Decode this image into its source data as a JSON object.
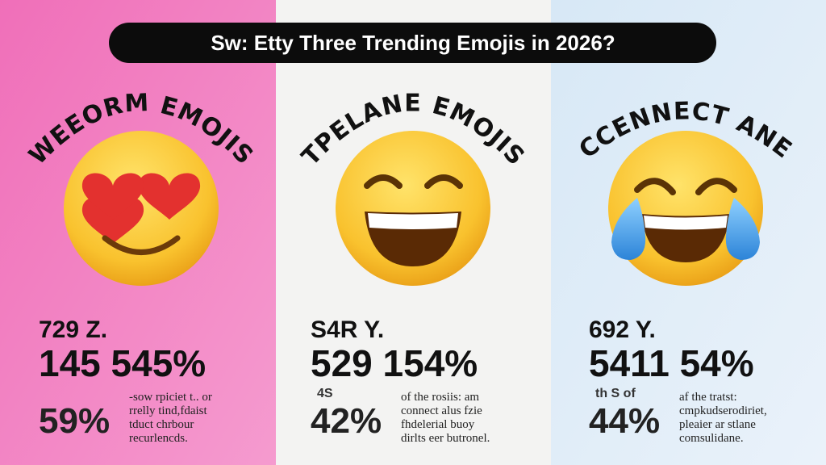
{
  "header": {
    "title": "Sw: Etty Three Trending Emojis in 2026?"
  },
  "panels": [
    {
      "heading": "WEEORM EMOJIS",
      "stat_small": "729 Z.",
      "stat_large": "145 545%",
      "percent": "59%",
      "text": [
        "-sow rpiciet t.. or",
        "rrelly tind,fdaist",
        "tduct chrbour",
        "recurlencds."
      ]
    },
    {
      "heading": "TPELANE EMOJIS",
      "stat_small": "S4R Y.",
      "stat_large": "529 154%",
      "percent": "42%",
      "percent_note": "4S",
      "text": [
        "of the rosiis: am",
        "connect alus fzie",
        "fhdelerial buoy",
        "dirlts eer butronel."
      ]
    },
    {
      "heading": "CCENNECT ANE",
      "stat_small": "692 Y.",
      "stat_large": "5411 54%",
      "percent": "44%",
      "percent_note": "th S of",
      "text": [
        "af the tratst:",
        "cmpkudserodiriet,",
        "pleaier ar stlane",
        "comsulidane."
      ]
    }
  ]
}
